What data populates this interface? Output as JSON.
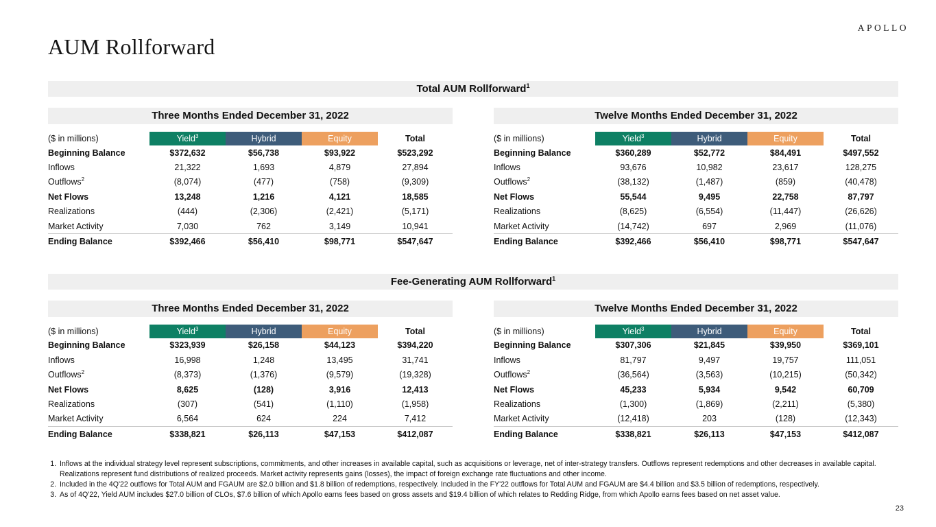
{
  "brand": {
    "logo": "APOLLO",
    "page_number": "23"
  },
  "page_title": "AUM Rollforward",
  "colors": {
    "yield_green": "#0E8064",
    "hybrid_slate": "#3E5C7A",
    "equity_orange": "#EDA05F",
    "band_gray": "#EFEFEF"
  },
  "sections": [
    {
      "title": "Total AUM Rollforward",
      "title_sup": "1",
      "tables": [
        {
          "period": "Three Months Ended December 31, 2022",
          "unit_label": "($ in millions)",
          "total_label": "Total",
          "columns": [
            {
              "label": "Yield",
              "sup": "3",
              "color": "#0E8064"
            },
            {
              "label": "Hybrid",
              "sup": "",
              "color": "#3E5C7A"
            },
            {
              "label": "Equity",
              "sup": "",
              "color": "#EDA05F"
            }
          ],
          "rows": [
            {
              "label": "Beginning Balance",
              "sup": "",
              "bold": true,
              "values": [
                "$372,632",
                "$56,738",
                "$93,922",
                "$523,292"
              ]
            },
            {
              "label": "Inflows",
              "sup": "",
              "bold": false,
              "values": [
                "21,322",
                "1,693",
                "4,879",
                "27,894"
              ]
            },
            {
              "label": "Outflows",
              "sup": "2",
              "bold": false,
              "values": [
                "(8,074)",
                "(477)",
                "(758)",
                "(9,309)"
              ]
            },
            {
              "label": "Net Flows",
              "sup": "",
              "bold": true,
              "values": [
                "13,248",
                "1,216",
                "4,121",
                "18,585"
              ]
            },
            {
              "label": "Realizations",
              "sup": "",
              "bold": false,
              "values": [
                "(444)",
                "(2,306)",
                "(2,421)",
                "(5,171)"
              ]
            },
            {
              "label": "Market Activity",
              "sup": "",
              "bold": false,
              "values": [
                "7,030",
                "762",
                "3,149",
                "10,941"
              ]
            },
            {
              "label": "Ending Balance",
              "sup": "",
              "bold": true,
              "values": [
                "$392,466",
                "$56,410",
                "$98,771",
                "$547,647"
              ]
            }
          ]
        },
        {
          "period": "Twelve Months Ended December 31, 2022",
          "unit_label": "($ in millions)",
          "total_label": "Total",
          "columns": [
            {
              "label": "Yield",
              "sup": "3",
              "color": "#0E8064"
            },
            {
              "label": "Hybrid",
              "sup": "",
              "color": "#3E5C7A"
            },
            {
              "label": "Equity",
              "sup": "",
              "color": "#EDA05F"
            }
          ],
          "rows": [
            {
              "label": "Beginning Balance",
              "sup": "",
              "bold": true,
              "values": [
                "$360,289",
                "$52,772",
                "$84,491",
                "$497,552"
              ]
            },
            {
              "label": "Inflows",
              "sup": "",
              "bold": false,
              "values": [
                "93,676",
                "10,982",
                "23,617",
                "128,275"
              ]
            },
            {
              "label": "Outflows",
              "sup": "2",
              "bold": false,
              "values": [
                "(38,132)",
                "(1,487)",
                "(859)",
                "(40,478)"
              ]
            },
            {
              "label": "Net Flows",
              "sup": "",
              "bold": true,
              "values": [
                "55,544",
                "9,495",
                "22,758",
                "87,797"
              ]
            },
            {
              "label": "Realizations",
              "sup": "",
              "bold": false,
              "values": [
                "(8,625)",
                "(6,554)",
                "(11,447)",
                "(26,626)"
              ]
            },
            {
              "label": "Market Activity",
              "sup": "",
              "bold": false,
              "values": [
                "(14,742)",
                "697",
                "2,969",
                "(11,076)"
              ]
            },
            {
              "label": "Ending Balance",
              "sup": "",
              "bold": true,
              "values": [
                "$392,466",
                "$56,410",
                "$98,771",
                "$547,647"
              ]
            }
          ]
        }
      ]
    },
    {
      "title": "Fee-Generating AUM Rollforward",
      "title_sup": "1",
      "tables": [
        {
          "period": "Three Months Ended December 31, 2022",
          "unit_label": "($ in millions)",
          "total_label": "Total",
          "columns": [
            {
              "label": "Yield",
              "sup": "3",
              "color": "#0E8064"
            },
            {
              "label": "Hybrid",
              "sup": "",
              "color": "#3E5C7A"
            },
            {
              "label": "Equity",
              "sup": "",
              "color": "#EDA05F"
            }
          ],
          "rows": [
            {
              "label": "Beginning Balance",
              "sup": "",
              "bold": true,
              "values": [
                "$323,939",
                "$26,158",
                "$44,123",
                "$394,220"
              ]
            },
            {
              "label": "Inflows",
              "sup": "",
              "bold": false,
              "values": [
                "16,998",
                "1,248",
                "13,495",
                "31,741"
              ]
            },
            {
              "label": "Outflows",
              "sup": "2",
              "bold": false,
              "values": [
                "(8,373)",
                "(1,376)",
                "(9,579)",
                "(19,328)"
              ]
            },
            {
              "label": "Net Flows",
              "sup": "",
              "bold": true,
              "values": [
                "8,625",
                "(128)",
                "3,916",
                "12,413"
              ]
            },
            {
              "label": "Realizations",
              "sup": "",
              "bold": false,
              "values": [
                "(307)",
                "(541)",
                "(1,110)",
                "(1,958)"
              ]
            },
            {
              "label": "Market Activity",
              "sup": "",
              "bold": false,
              "values": [
                "6,564",
                "624",
                "224",
                "7,412"
              ]
            },
            {
              "label": "Ending Balance",
              "sup": "",
              "bold": true,
              "values": [
                "$338,821",
                "$26,113",
                "$47,153",
                "$412,087"
              ]
            }
          ]
        },
        {
          "period": "Twelve Months Ended December 31, 2022",
          "unit_label": "($ in millions)",
          "total_label": "Total",
          "columns": [
            {
              "label": "Yield",
              "sup": "3",
              "color": "#0E8064"
            },
            {
              "label": "Hybrid",
              "sup": "",
              "color": "#3E5C7A"
            },
            {
              "label": "Equity",
              "sup": "",
              "color": "#EDA05F"
            }
          ],
          "rows": [
            {
              "label": "Beginning Balance",
              "sup": "",
              "bold": true,
              "values": [
                "$307,306",
                "$21,845",
                "$39,950",
                "$369,101"
              ]
            },
            {
              "label": "Inflows",
              "sup": "",
              "bold": false,
              "values": [
                "81,797",
                "9,497",
                "19,757",
                "111,051"
              ]
            },
            {
              "label": "Outflows",
              "sup": "2",
              "bold": false,
              "values": [
                "(36,564)",
                "(3,563)",
                "(10,215)",
                "(50,342)"
              ]
            },
            {
              "label": "Net Flows",
              "sup": "",
              "bold": true,
              "values": [
                "45,233",
                "5,934",
                "9,542",
                "60,709"
              ]
            },
            {
              "label": "Realizations",
              "sup": "",
              "bold": false,
              "values": [
                "(1,300)",
                "(1,869)",
                "(2,211)",
                "(5,380)"
              ]
            },
            {
              "label": "Market Activity",
              "sup": "",
              "bold": false,
              "values": [
                "(12,418)",
                "203",
                "(128)",
                "(12,343)"
              ]
            },
            {
              "label": "Ending Balance",
              "sup": "",
              "bold": true,
              "values": [
                "$338,821",
                "$26,113",
                "$47,153",
                "$412,087"
              ]
            }
          ]
        }
      ]
    }
  ],
  "footnotes": [
    "Inflows at the individual strategy level represent subscriptions, commitments, and other increases in available capital, such as acquisitions or leverage, net of inter-strategy transfers. Outflows represent redemptions and other decreases in available capital. Realizations represent fund distributions of realized proceeds. Market activity represents gains (losses), the impact of foreign exchange rate fluctuations and other income.",
    "Included in the 4Q'22 outflows for Total AUM and FGAUM are $2.0 billion and $1.8 billion of redemptions, respectively. Included in the FY'22 outflows for Total AUM and FGAUM are $4.4 billion and $3.5 billion of redemptions, respectively.",
    "As of 4Q'22, Yield AUM includes $27.0 billion of CLOs, $7.6 billion of which Apollo earns fees based on gross assets and $19.4 billion of which relates to Redding Ridge, from which Apollo earns fees based on net asset value."
  ]
}
